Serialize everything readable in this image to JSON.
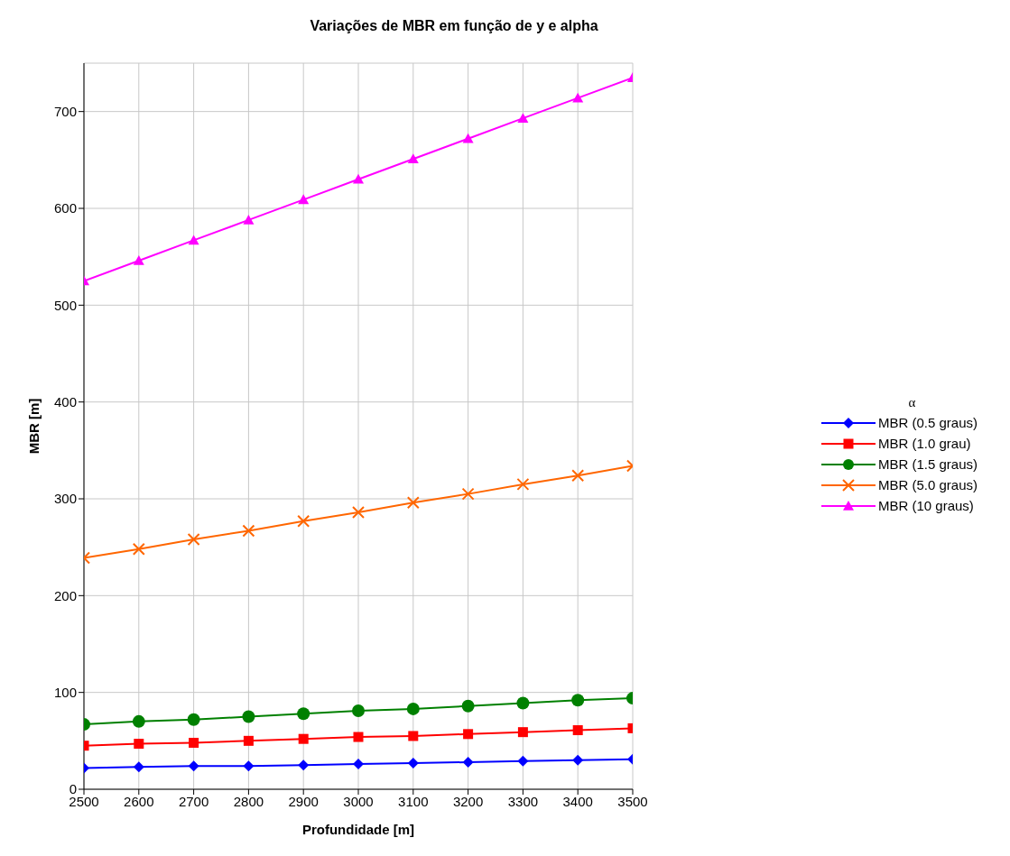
{
  "chart_data": {
    "type": "line",
    "title": "Variações de MBR em função de y e alpha",
    "xlabel": "Profundidade [m]",
    "ylabel": "MBR [m]",
    "legend_title": "α",
    "x": [
      2500,
      2600,
      2700,
      2800,
      2900,
      3000,
      3100,
      3200,
      3300,
      3400,
      3500
    ],
    "series": [
      {
        "name": "MBR (0.5 graus)",
        "color": "#0000ff",
        "marker": "diamond",
        "values": [
          22,
          23,
          24,
          24,
          25,
          26,
          27,
          28,
          29,
          30,
          31
        ]
      },
      {
        "name": "MBR (1.0 grau)",
        "color": "#ff0000",
        "marker": "square",
        "values": [
          45,
          47,
          48,
          50,
          52,
          54,
          55,
          57,
          59,
          61,
          63
        ]
      },
      {
        "name": "MBR (1.5 graus)",
        "color": "#008000",
        "marker": "circle",
        "values": [
          67,
          70,
          72,
          75,
          78,
          81,
          83,
          86,
          89,
          92,
          94
        ]
      },
      {
        "name": "MBR (5.0 graus)",
        "color": "#ff6600",
        "marker": "cross",
        "values": [
          239,
          248,
          258,
          267,
          277,
          286,
          296,
          305,
          315,
          324,
          334
        ]
      },
      {
        "name": "MBR (10 graus)",
        "color": "#ff00ff",
        "marker": "triangle",
        "values": [
          525,
          546,
          567,
          588,
          609,
          630,
          651,
          672,
          693,
          714,
          735
        ]
      }
    ],
    "xlim": [
      2500,
      3500
    ],
    "xticks": [
      2500,
      2600,
      2700,
      2800,
      2900,
      3000,
      3100,
      3200,
      3300,
      3400,
      3500
    ],
    "ylim": [
      0,
      750
    ],
    "yticks": [
      0,
      100,
      200,
      300,
      400,
      500,
      600,
      700
    ],
    "grid": true,
    "legend": "right",
    "line_style": "solid"
  }
}
